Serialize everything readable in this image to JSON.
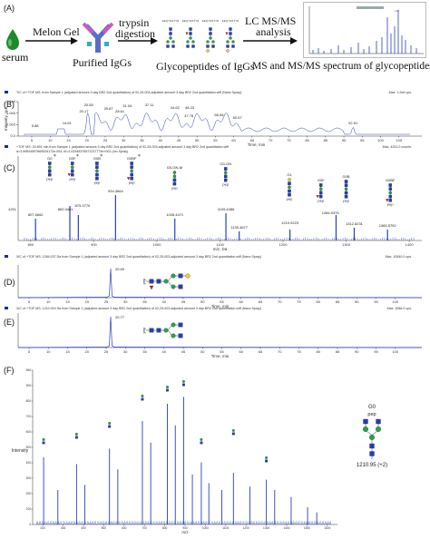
{
  "panels": {
    "A": "(A)",
    "B": "(B)",
    "C": "(C)",
    "D": "(D)",
    "E": "(E)",
    "F": "(F)"
  },
  "workflow": {
    "serum": "serum",
    "melon_gel": "Melon Gel",
    "purified_iggs": "Purified IgGs",
    "trypsin_line1": "trypsin",
    "trypsin_line2": "digestion",
    "glycopeptides": "Glycopeptides of IgGs",
    "lcms_line1": "LC MS/MS",
    "lcms_line2": "analysis",
    "spectrum": "MS and MS/MS spectrum of glycopeptides"
  },
  "panel_b": {
    "header": "TIC of +TOF MS: from Sample 1 (adjusted amount 3 day BR2 2nd quantitation) of 02-25-003-adjusted amount 3 day BR2 2nd quantitation.wiff (Nano Spray)",
    "max": "Max. 1.2e6 cps.",
    "xlabel": "Time, min",
    "ylabel": "Intensity, cps",
    "peak_labels": [
      "5.88",
      "14.61",
      "20.55",
      "20.17",
      "25.87",
      "28.61",
      "31.04",
      "37.11",
      "44.62",
      "48.23",
      "47.78",
      "56.08",
      "60.67",
      "92.51"
    ],
    "yticks": [
      "1.2e6",
      "1.0e6",
      "5.0e5",
      "0.0"
    ],
    "xticks": [
      "5",
      "10",
      "15",
      "20",
      "25",
      "30",
      "35",
      "40",
      "45",
      "50",
      "55",
      "60",
      "65",
      "70",
      "75",
      "80",
      "85",
      "90",
      "95",
      "100",
      "105"
    ]
  },
  "panel_c": {
    "header1": "+TOF MS: 20.891 min from Sample 1 (adjusted amount 3 day BR2 2nd quantitation) of 02-25-003-adjusted amount 3 day BR2 2nd quantitation.wiff",
    "header2": "a=3.59844597669526172e-004, t0=2.02948376571237774e+001 (Ion Spray)",
    "max": "Max. 4251.0 counts.",
    "xlabel": "m/z, Da",
    "ylabel_tick": "4251",
    "xticks": [
      "800",
      "900",
      "1000",
      "1100",
      "1200",
      "1300",
      "1400"
    ],
    "peak_labels": [
      "807.6662",
      "862.0461",
      "875.3770",
      "934.3664",
      "1028.4471",
      "1109.4486",
      "1130.4677",
      "1210.9223",
      "1284.0375",
      "1312.8231",
      "1365.5792"
    ],
    "glyco_labels": [
      "G0",
      "G0F",
      "G0B",
      "G0BF",
      "G0-GN-M",
      "G0-GN",
      "G1",
      "G0F",
      "G0B",
      "G0BF"
    ],
    "pep": "pep"
  },
  "panel_d": {
    "header": "XIC of +TOF MS: 1284.037 Da from Sample 1 (adjusted amount 3 day BR2 2nd quantitation) of 02-25-003-adjusted amount 3 day BR2 2nd quantitation.wiff (Nano Spray)",
    "max": "Max. 10540.0 cps.",
    "peak_label": "20.59",
    "xlabel": "Time, min",
    "pep": "pep",
    "xticks": [
      "5",
      "10",
      "15",
      "20",
      "25",
      "30",
      "35",
      "40",
      "45",
      "50",
      "55",
      "60",
      "65",
      "70",
      "75",
      "80",
      "85",
      "90",
      "95",
      "100"
    ]
  },
  "panel_e": {
    "header": "XIC of +TOF MS: 1210.915 Da from Sample 1 (adjusted amount 3 day BR2 2nd quantitation) of 02-25-003-adjusted amount 3 day BR2 2nd quantitation.wiff (Nano Spray)",
    "max": "Max. 3066.0 cps.",
    "peak_label": "20.77",
    "xlabel": "Time, min",
    "pep": "pep",
    "xticks": [
      "5",
      "10",
      "15",
      "20",
      "25",
      "30",
      "35",
      "40",
      "45",
      "50",
      "55",
      "60",
      "65",
      "70",
      "75",
      "80",
      "85",
      "90",
      "95",
      "100"
    ]
  },
  "panel_f": {
    "ylabel": "Intensity",
    "xlabel": "m/z",
    "glycan_name": "G0",
    "pep": "pep",
    "precursor": "1210.95 (+2)",
    "xticks": [
      "200",
      "300",
      "400",
      "500",
      "600",
      "700",
      "800",
      "900",
      "1000",
      "1100",
      "1200",
      "1300",
      "1400",
      "1500",
      "1600"
    ],
    "yticks": [
      "960",
      "900",
      "800",
      "700",
      "600",
      "500",
      "400",
      "300",
      "200",
      "100",
      "0"
    ]
  },
  "colors": {
    "trace": "#2a3fbf",
    "glcnac": "#1f3fbf",
    "mannose": "#1fa84a",
    "fucose": "#d62020",
    "galactose": "#f2d21a",
    "droplet": "#1f8a2a"
  }
}
